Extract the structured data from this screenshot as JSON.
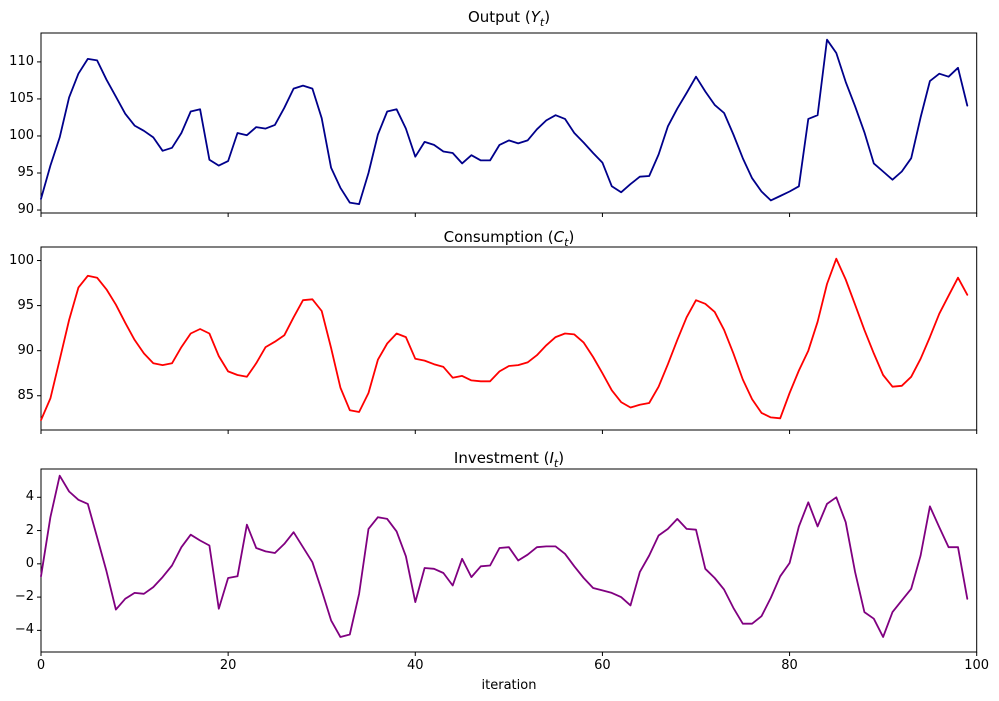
{
  "chart_data": [
    {
      "type": "line",
      "title": "Output (Yt)",
      "title_parts": {
        "name": "Output",
        "open": " (",
        "var": "Y",
        "sub": "t",
        "close": ")"
      },
      "color": "#00008b",
      "xlabel": "iteration",
      "x_start": 0,
      "x_step": 1,
      "xlim": [
        0,
        100
      ],
      "xticks": [
        0,
        20,
        40,
        60,
        80,
        100
      ],
      "ylim": [
        89.6,
        113.9
      ],
      "yticks": [
        90,
        95,
        100,
        105,
        110
      ],
      "values": [
        91.5,
        96.0,
        99.8,
        105.2,
        108.4,
        110.4,
        110.2,
        107.6,
        105.3,
        103.0,
        101.4,
        100.7,
        99.8,
        98.0,
        98.4,
        100.4,
        103.3,
        103.6,
        96.8,
        96.0,
        96.6,
        100.4,
        100.1,
        101.2,
        101.0,
        101.5,
        103.8,
        106.4,
        106.8,
        106.4,
        102.4,
        95.7,
        93.0,
        91.0,
        90.8,
        95.0,
        100.2,
        103.3,
        103.6,
        101.0,
        97.2,
        99.2,
        98.8,
        97.9,
        97.7,
        96.3,
        97.4,
        96.7,
        96.7,
        98.8,
        99.4,
        99.0,
        99.4,
        100.9,
        102.1,
        102.8,
        102.3,
        100.4,
        99.1,
        97.7,
        96.4,
        93.2,
        92.4,
        93.5,
        94.5,
        94.6,
        97.5,
        101.3,
        103.7,
        105.8,
        108.0,
        106.0,
        104.2,
        103.1,
        100.2,
        97.0,
        94.3,
        92.5,
        91.3,
        91.9,
        92.5,
        93.2,
        102.3,
        102.8,
        113.0,
        111.2,
        107.3,
        104.0,
        100.5,
        96.3,
        95.2,
        94.1,
        95.2,
        97.0,
        102.5,
        107.4,
        108.4,
        108.0,
        109.2,
        104.1
      ]
    },
    {
      "type": "line",
      "title": "Consumption (Ct)",
      "title_parts": {
        "name": "Consumption",
        "open": " (",
        "var": "C",
        "sub": "t",
        "close": ")"
      },
      "color": "#ff0000",
      "xlabel": "iteration",
      "x_start": 0,
      "x_step": 1,
      "xlim": [
        0,
        100
      ],
      "xticks": [
        0,
        20,
        40,
        60,
        80,
        100
      ],
      "ylim": [
        81.2,
        101.5
      ],
      "yticks": [
        85,
        90,
        95,
        100
      ],
      "values": [
        82.3,
        84.7,
        89.0,
        93.4,
        97.0,
        98.3,
        98.1,
        96.8,
        95.1,
        93.1,
        91.2,
        89.7,
        88.6,
        88.4,
        88.6,
        90.4,
        91.9,
        92.4,
        91.9,
        89.4,
        87.7,
        87.3,
        87.1,
        88.6,
        90.4,
        91.0,
        91.7,
        93.7,
        95.6,
        95.7,
        94.4,
        90.3,
        85.9,
        83.4,
        83.2,
        85.3,
        89.0,
        90.8,
        91.9,
        91.5,
        89.1,
        88.9,
        88.5,
        88.2,
        87.0,
        87.2,
        86.7,
        86.6,
        86.6,
        87.7,
        88.3,
        88.4,
        88.7,
        89.5,
        90.6,
        91.5,
        91.9,
        91.8,
        90.9,
        89.3,
        87.5,
        85.6,
        84.3,
        83.7,
        84.0,
        84.2,
        86.0,
        88.5,
        91.2,
        93.7,
        95.6,
        95.2,
        94.3,
        92.3,
        89.7,
        86.8,
        84.6,
        83.1,
        82.6,
        82.5,
        85.3,
        87.8,
        90.0,
        93.2,
        97.4,
        100.2,
        97.9,
        95.1,
        92.3,
        89.7,
        87.3,
        86.0,
        86.1,
        87.1,
        89.1,
        91.5,
        94.1,
        96.1,
        98.1,
        96.2
      ]
    },
    {
      "type": "line",
      "title": "Investment (It)",
      "title_parts": {
        "name": "Investment",
        "open": " (",
        "var": "I",
        "sub": "t",
        "close": ")"
      },
      "color": "#800080",
      "xlabel": "iteration",
      "x_start": 0,
      "x_step": 1,
      "xlim": [
        0,
        100
      ],
      "xticks": [
        0,
        20,
        40,
        60,
        80,
        100
      ],
      "ylim": [
        -5.3,
        5.7
      ],
      "yticks": [
        -4,
        -2,
        0,
        2,
        4
      ],
      "values": [
        -0.75,
        2.8,
        5.3,
        4.35,
        3.85,
        3.6,
        1.6,
        -0.45,
        -2.75,
        -2.1,
        -1.75,
        -1.8,
        -1.4,
        -0.8,
        -0.1,
        1.0,
        1.75,
        1.4,
        1.1,
        -2.7,
        -0.85,
        -0.75,
        2.35,
        0.95,
        0.75,
        0.65,
        1.2,
        1.9,
        1.0,
        0.1,
        -1.6,
        -3.4,
        -4.4,
        -4.25,
        -1.8,
        2.1,
        2.8,
        2.7,
        1.95,
        0.45,
        -2.3,
        -0.25,
        -0.3,
        -0.55,
        -1.3,
        0.3,
        -0.8,
        -0.15,
        -0.1,
        0.95,
        1.0,
        0.2,
        0.55,
        1.0,
        1.05,
        1.05,
        0.6,
        -0.15,
        -0.85,
        -1.45,
        -1.6,
        -1.75,
        -2.0,
        -2.5,
        -0.5,
        0.5,
        1.7,
        2.1,
        2.7,
        2.1,
        2.05,
        -0.3,
        -0.85,
        -1.55,
        -2.65,
        -3.6,
        -3.6,
        -3.15,
        -2.05,
        -0.75,
        0.05,
        2.25,
        3.7,
        2.25,
        3.6,
        4.0,
        2.5,
        -0.5,
        -2.9,
        -3.3,
        -4.4,
        -2.9,
        -2.2,
        -1.5,
        0.5,
        3.45,
        2.2,
        1.0,
        1.0,
        -2.1
      ]
    }
  ]
}
